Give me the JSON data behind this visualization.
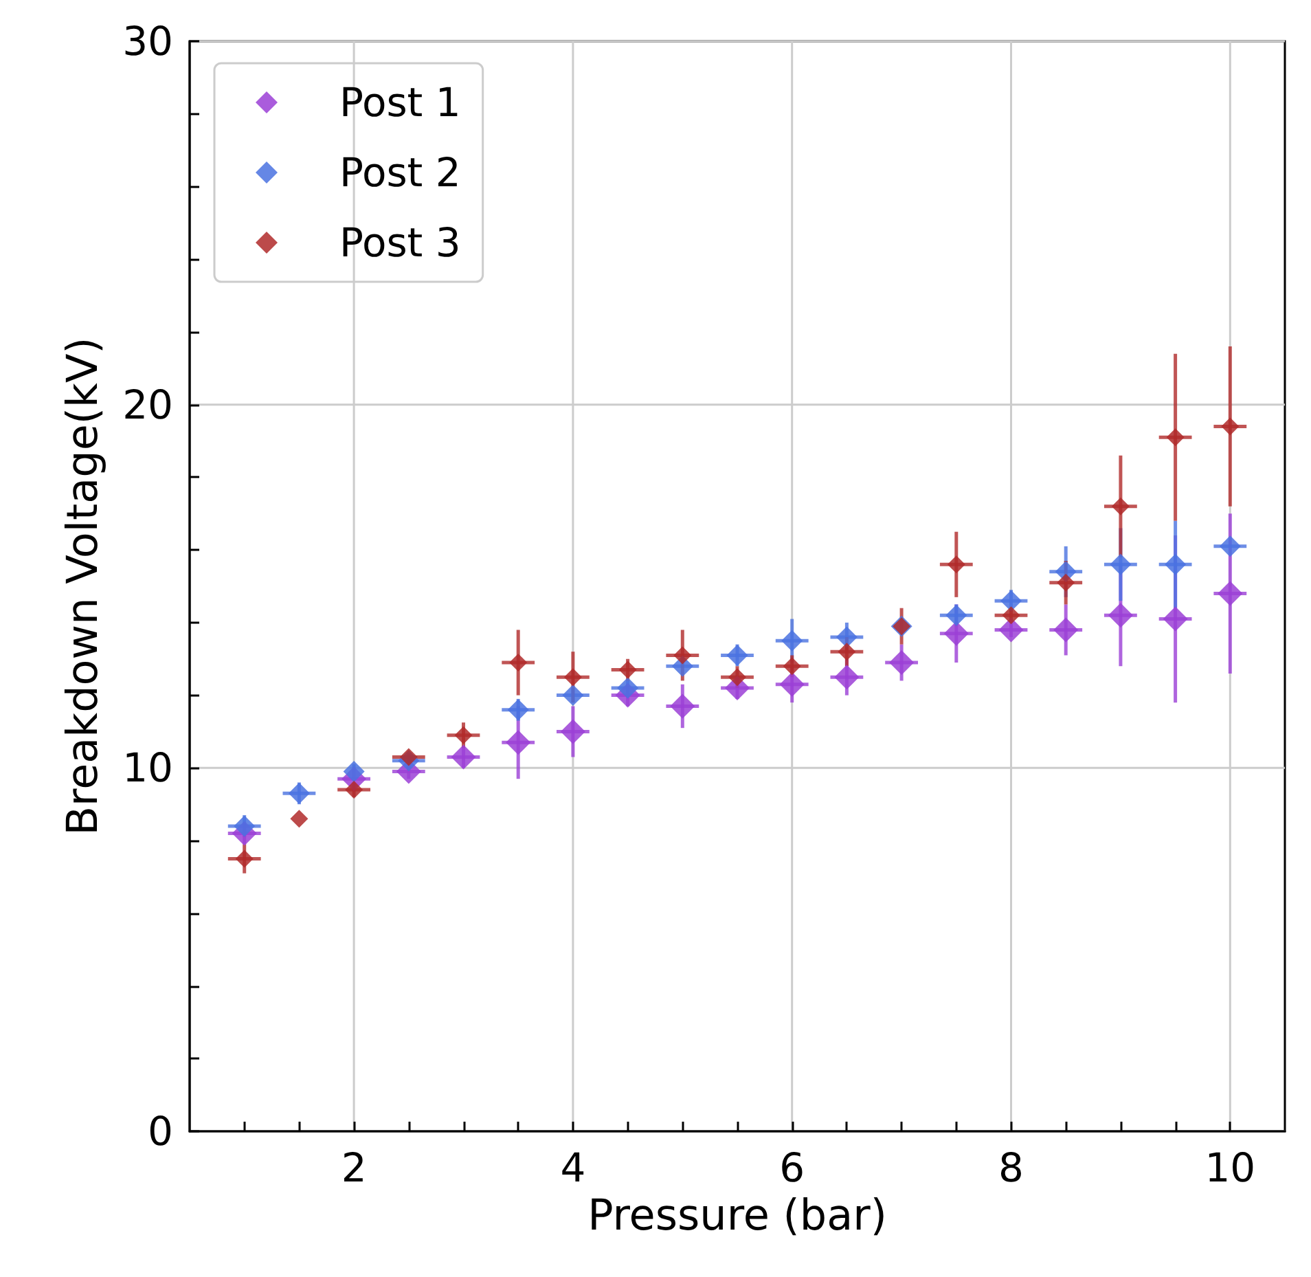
{
  "chart_data": {
    "type": "scatter",
    "xlabel": "Pressure (bar)",
    "ylabel": "Breakdown Voltage(kV)",
    "x": [
      1,
      1.5,
      2,
      2.5,
      3,
      3.5,
      4,
      4.5,
      5,
      5.5,
      6,
      6.5,
      7,
      7.5,
      8,
      8.5,
      9,
      9.5,
      10
    ],
    "series": [
      {
        "name": "Post 1",
        "color": "#9b3fd6",
        "values": [
          8.2,
          null,
          9.7,
          9.9,
          10.3,
          10.7,
          11.0,
          12.0,
          11.7,
          12.2,
          12.3,
          12.5,
          12.9,
          13.7,
          13.8,
          13.8,
          14.2,
          14.1,
          14.8
        ],
        "errors": [
          0.3,
          null,
          null,
          0.2,
          0.3,
          1.0,
          0.7,
          0.3,
          0.6,
          0.3,
          0.5,
          0.5,
          0.5,
          0.8,
          0.2,
          0.7,
          1.4,
          2.3,
          2.2
        ],
        "xerrors": [
          0.15,
          null,
          0.15,
          0.15,
          0.15,
          0.15,
          0.15,
          0.15,
          0.15,
          0.15,
          0.15,
          0.15,
          0.15,
          0.15,
          0.15,
          0.15,
          0.15,
          0.15,
          0.15
        ]
      },
      {
        "name": "Post 2",
        "color": "#4a72e0",
        "values": [
          8.4,
          9.3,
          9.9,
          10.2,
          null,
          11.6,
          12.0,
          12.2,
          12.8,
          13.1,
          13.5,
          13.6,
          13.9,
          14.2,
          14.6,
          15.4,
          15.6,
          15.6,
          16.1
        ],
        "errors": [
          0.3,
          0.3,
          0.2,
          0.2,
          null,
          0.3,
          0.2,
          0.2,
          null,
          0.3,
          0.6,
          0.4,
          null,
          0.3,
          0.3,
          0.7,
          1.0,
          1.2,
          null
        ],
        "xerrors": [
          0.15,
          0.15,
          null,
          0.15,
          null,
          0.15,
          0.15,
          0.15,
          0.15,
          0.15,
          0.15,
          0.15,
          null,
          0.15,
          0.15,
          0.15,
          0.15,
          0.15,
          0.15
        ]
      },
      {
        "name": "Post 3",
        "color": "#b02a2a",
        "values": [
          7.5,
          8.6,
          9.4,
          10.3,
          10.9,
          12.9,
          12.5,
          12.7,
          13.1,
          12.5,
          12.8,
          13.2,
          13.9,
          15.6,
          14.2,
          15.1,
          17.2,
          19.1,
          19.4
        ],
        "errors": [
          0.4,
          null,
          0.2,
          null,
          0.35,
          0.9,
          0.7,
          0.3,
          0.7,
          0.3,
          0.3,
          0.4,
          0.5,
          0.9,
          0.2,
          0.6,
          1.4,
          2.3,
          2.2
        ],
        "xerrors": [
          0.15,
          null,
          0.15,
          0.15,
          0.15,
          0.15,
          0.15,
          0.15,
          0.15,
          0.15,
          0.15,
          0.15,
          null,
          0.15,
          0.15,
          0.15,
          0.15,
          0.15,
          0.15
        ]
      }
    ],
    "xlim": [
      0.5,
      10.5
    ],
    "xticks": [
      {
        "value": 1,
        "label": null
      },
      {
        "value": 1.5,
        "label": null
      },
      2,
      {
        "value": 2.5,
        "label": null
      },
      {
        "value": 3,
        "label": null
      },
      {
        "value": 3.5,
        "label": null
      },
      4,
      {
        "value": 4.5,
        "label": null
      },
      {
        "value": 5,
        "label": null
      },
      {
        "value": 5.5,
        "label": null
      },
      6,
      {
        "value": 6.5,
        "label": null
      },
      {
        "value": 7,
        "label": null
      },
      {
        "value": 7.5,
        "label": null
      },
      8,
      {
        "value": 8.5,
        "label": null
      },
      {
        "value": 9,
        "label": null
      },
      {
        "value": 9.5,
        "label": null
      },
      10
    ],
    "ylim": [
      0,
      30
    ],
    "yticks": [
      0,
      {
        "value": 2,
        "label": null
      },
      {
        "value": 4,
        "label": null
      },
      {
        "value": 6,
        "label": null
      },
      {
        "value": 8,
        "label": null
      },
      10,
      {
        "value": 12,
        "label": null
      },
      {
        "value": 14,
        "label": null
      },
      {
        "value": 16,
        "label": null
      },
      {
        "value": 18,
        "label": null
      },
      20,
      {
        "value": 22,
        "label": null
      },
      {
        "value": 24,
        "label": null
      },
      {
        "value": 26,
        "label": null
      },
      {
        "value": 28,
        "label": null
      },
      30
    ],
    "grid": true,
    "legend": "top left",
    "marker": "diamond"
  }
}
